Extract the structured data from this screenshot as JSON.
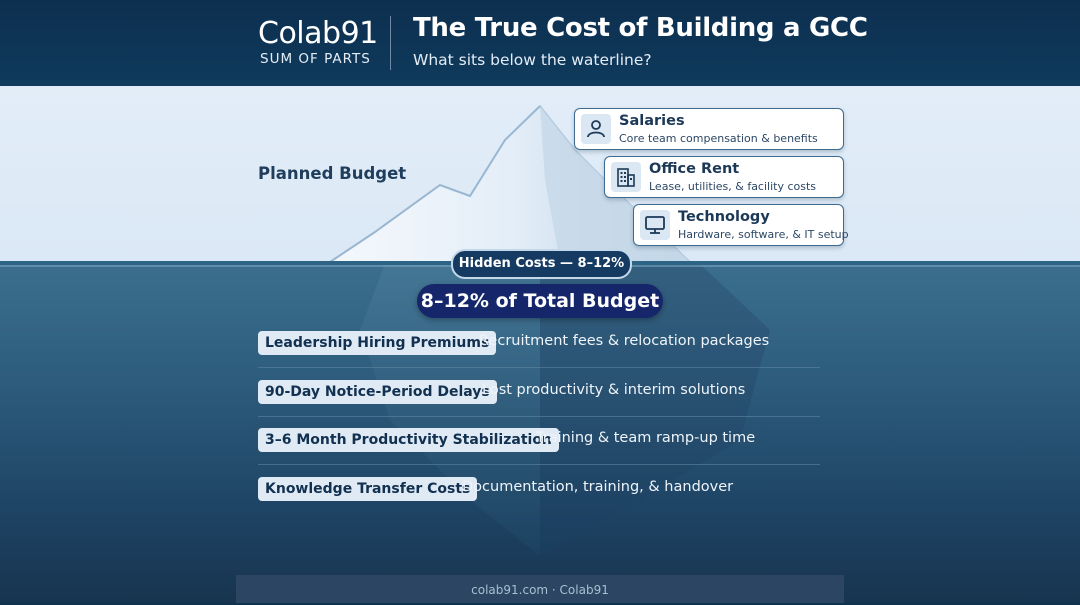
{
  "header": {
    "logo_name": "Colab91",
    "logo_tagline": "SUM OF PARTS",
    "title": "The True Cost of Building a GCC",
    "subtitle": "What sits below the waterline?"
  },
  "above": {
    "label": "Planned Budget",
    "cards": [
      {
        "title": "Salaries",
        "desc": "Core team compensation & benefits",
        "icon": "person-icon"
      },
      {
        "title": "Office Rent",
        "desc": "Lease, utilities, & facility costs",
        "icon": "building-icon"
      },
      {
        "title": "Technology",
        "desc": "Hardware, software, & IT setup",
        "icon": "monitor-icon"
      }
    ]
  },
  "below": {
    "hidden_label": "Hidden Costs — 8–12%",
    "total_label": "8–12% of Total Budget",
    "items": [
      {
        "tag": "Leadership Hiring Premiums",
        "desc": "Recruitment fees & relocation packages"
      },
      {
        "tag": "90-Day Notice-Period Delays",
        "desc": "Lost productivity & interim solutions"
      },
      {
        "tag": "3–6 Month Productivity Stabilization",
        "desc": "Training & team ramp-up time"
      },
      {
        "tag": "Knowledge Transfer Costs",
        "desc": "Documentation, training, & handover"
      }
    ]
  },
  "footer": {
    "text": "colab91.com · Colab91"
  },
  "colors": {
    "header_bg": "#0d2f4f",
    "sky": "#e2edf8",
    "water": "#2f5f7f",
    "pill_dark": "#15266b",
    "tag_bg": "#dfeaf5"
  }
}
